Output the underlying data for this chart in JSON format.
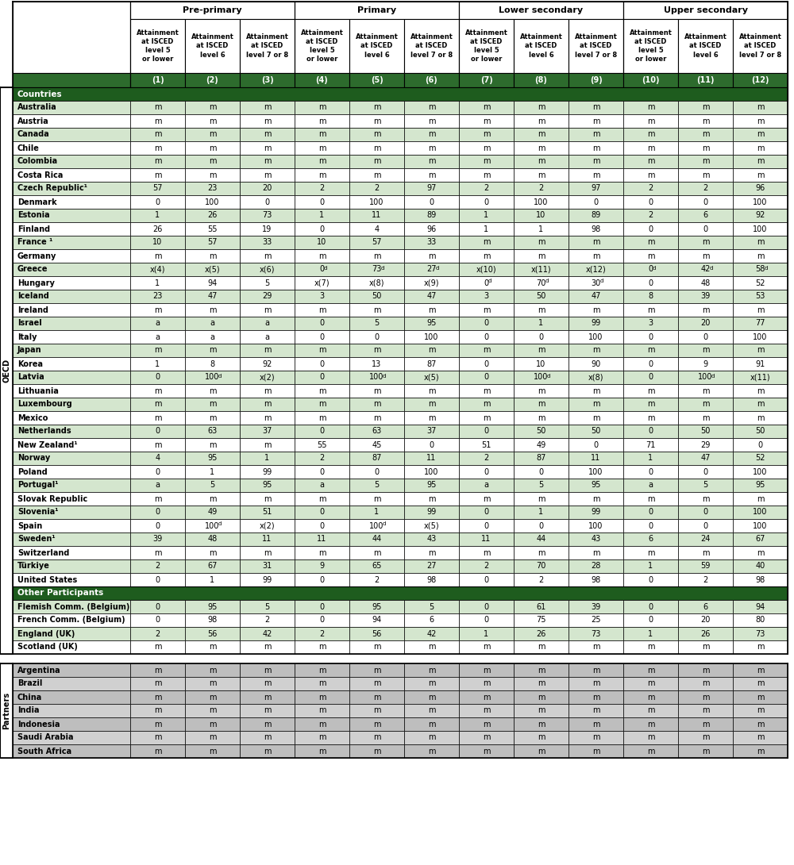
{
  "col_groups": [
    "Pre-primary",
    "Primary",
    "Lower secondary",
    "Upper secondary"
  ],
  "col_subheaders": [
    "Attainment\nat ISCED\nlevel 5\nor lower",
    "Attainment\nat ISCED\nlevel 6",
    "Attainment\nat ISCED\nlevel 7 or 8",
    "Attainment\nat ISCED\nlevel 5\nor lower",
    "Attainment\nat ISCED\nlevel 6",
    "Attainment\nat ISCED\nlevel 7 or 8",
    "Attainment\nat ISCED\nlevel 5\nor lower",
    "Attainment\nat ISCED\nlevel 6",
    "Attainment\nat ISCED\nlevel 7 or 8",
    "Attainment\nat ISCED\nlevel 5\nor lower",
    "Attainment\nat ISCED\nlevel 6",
    "Attainment\nat ISCED\nlevel 7 or 8"
  ],
  "col_numbers": [
    "(1)",
    "(2)",
    "(3)",
    "(4)",
    "(5)",
    "(6)",
    "(7)",
    "(8)",
    "(9)",
    "(10)",
    "(11)",
    "(12)"
  ],
  "oecd_label": "OECD",
  "partners_label": "Partners",
  "countries_header": "Countries",
  "other_participants_header": "Other Participants",
  "oecd_countries": [
    "Australia",
    "Austria",
    "Canada",
    "Chile",
    "Colombia",
    "Costa Rica",
    "Czech Republic¹",
    "Denmark",
    "Estonia",
    "Finland",
    "France ¹",
    "Germany",
    "Greece",
    "Hungary",
    "Iceland",
    "Ireland",
    "Israel",
    "Italy",
    "Japan",
    "Korea",
    "Latvia",
    "Lithuania",
    "Luxembourg",
    "Mexico",
    "Netherlands",
    "New Zealand¹",
    "Norway",
    "Poland",
    "Portugal¹",
    "Slovak Republic",
    "Slovenia¹",
    "Spain",
    "Sweden¹",
    "Switzerland",
    "Türkiye",
    "United States"
  ],
  "other_participants": [
    "Flemish Comm. (Belgium)",
    "French Comm. (Belgium)",
    "England (UK)",
    "Scotland (UK)"
  ],
  "partners": [
    "Argentina",
    "Brazil",
    "China",
    "India",
    "Indonesia",
    "Saudi Arabia",
    "South Africa"
  ],
  "oecd_data": [
    [
      "m",
      "m",
      "m",
      "m",
      "m",
      "m",
      "m",
      "m",
      "m",
      "m",
      "m",
      "m"
    ],
    [
      "m",
      "m",
      "m",
      "m",
      "m",
      "m",
      "m",
      "m",
      "m",
      "m",
      "m",
      "m"
    ],
    [
      "m",
      "m",
      "m",
      "m",
      "m",
      "m",
      "m",
      "m",
      "m",
      "m",
      "m",
      "m"
    ],
    [
      "m",
      "m",
      "m",
      "m",
      "m",
      "m",
      "m",
      "m",
      "m",
      "m",
      "m",
      "m"
    ],
    [
      "m",
      "m",
      "m",
      "m",
      "m",
      "m",
      "m",
      "m",
      "m",
      "m",
      "m",
      "m"
    ],
    [
      "m",
      "m",
      "m",
      "m",
      "m",
      "m",
      "m",
      "m",
      "m",
      "m",
      "m",
      "m"
    ],
    [
      "57",
      "23",
      "20",
      "2",
      "2",
      "97",
      "2",
      "2",
      "97",
      "2",
      "2",
      "96"
    ],
    [
      "0",
      "100",
      "0",
      "0",
      "100",
      "0",
      "0",
      "100",
      "0",
      "0",
      "0",
      "100"
    ],
    [
      "1",
      "26",
      "73",
      "1",
      "11",
      "89",
      "1",
      "10",
      "89",
      "2",
      "6",
      "92"
    ],
    [
      "26",
      "55",
      "19",
      "0",
      "4",
      "96",
      "1",
      "1",
      "98",
      "0",
      "0",
      "100"
    ],
    [
      "10",
      "57",
      "33",
      "10",
      "57",
      "33",
      "m",
      "m",
      "m",
      "m",
      "m",
      "m"
    ],
    [
      "m",
      "m",
      "m",
      "m",
      "m",
      "m",
      "m",
      "m",
      "m",
      "m",
      "m",
      "m"
    ],
    [
      "x(4)",
      "x(5)",
      "x(6)",
      "0d",
      "73d",
      "27d",
      "x(10)",
      "x(11)",
      "x(12)",
      "0d",
      "42d",
      "58d"
    ],
    [
      "1",
      "94",
      "5",
      "x(7)",
      "x(8)",
      "x(9)",
      "0d",
      "70d",
      "30d",
      "0",
      "48",
      "52"
    ],
    [
      "23",
      "47",
      "29",
      "3",
      "50",
      "47",
      "3",
      "50",
      "47",
      "8",
      "39",
      "53"
    ],
    [
      "m",
      "m",
      "m",
      "m",
      "m",
      "m",
      "m",
      "m",
      "m",
      "m",
      "m",
      "m"
    ],
    [
      "a",
      "a",
      "a",
      "0",
      "5",
      "95",
      "0",
      "1",
      "99",
      "3",
      "20",
      "77"
    ],
    [
      "a",
      "a",
      "a",
      "0",
      "0",
      "100",
      "0",
      "0",
      "100",
      "0",
      "0",
      "100"
    ],
    [
      "m",
      "m",
      "m",
      "m",
      "m",
      "m",
      "m",
      "m",
      "m",
      "m",
      "m",
      "m"
    ],
    [
      "1",
      "8",
      "92",
      "0",
      "13",
      "87",
      "0",
      "10",
      "90",
      "0",
      "9",
      "91"
    ],
    [
      "0",
      "100d",
      "x(2)",
      "0",
      "100d",
      "x(5)",
      "0",
      "100d",
      "x(8)",
      "0",
      "100d",
      "x(11)"
    ],
    [
      "m",
      "m",
      "m",
      "m",
      "m",
      "m",
      "m",
      "m",
      "m",
      "m",
      "m",
      "m"
    ],
    [
      "m",
      "m",
      "m",
      "m",
      "m",
      "m",
      "m",
      "m",
      "m",
      "m",
      "m",
      "m"
    ],
    [
      "m",
      "m",
      "m",
      "m",
      "m",
      "m",
      "m",
      "m",
      "m",
      "m",
      "m",
      "m"
    ],
    [
      "0",
      "63",
      "37",
      "0",
      "63",
      "37",
      "0",
      "50",
      "50",
      "0",
      "50",
      "50"
    ],
    [
      "m",
      "m",
      "m",
      "55",
      "45",
      "0",
      "51",
      "49",
      "0",
      "71",
      "29",
      "0"
    ],
    [
      "4",
      "95",
      "1",
      "2",
      "87",
      "11",
      "2",
      "87",
      "11",
      "1",
      "47",
      "52"
    ],
    [
      "0",
      "1",
      "99",
      "0",
      "0",
      "100",
      "0",
      "0",
      "100",
      "0",
      "0",
      "100"
    ],
    [
      "a",
      "5",
      "95",
      "a",
      "5",
      "95",
      "a",
      "5",
      "95",
      "a",
      "5",
      "95"
    ],
    [
      "m",
      "m",
      "m",
      "m",
      "m",
      "m",
      "m",
      "m",
      "m",
      "m",
      "m",
      "m"
    ],
    [
      "0",
      "49",
      "51",
      "0",
      "1",
      "99",
      "0",
      "1",
      "99",
      "0",
      "0",
      "100"
    ],
    [
      "0",
      "100d",
      "x(2)",
      "0",
      "100d",
      "x(5)",
      "0",
      "0",
      "100",
      "0",
      "0",
      "100"
    ],
    [
      "39",
      "48",
      "11",
      "11",
      "44",
      "43",
      "11",
      "44",
      "43",
      "6",
      "24",
      "67"
    ],
    [
      "m",
      "m",
      "m",
      "m",
      "m",
      "m",
      "m",
      "m",
      "m",
      "m",
      "m",
      "m"
    ],
    [
      "2",
      "67",
      "31",
      "9",
      "65",
      "27",
      "2",
      "70",
      "28",
      "1",
      "59",
      "40"
    ],
    [
      "0",
      "1",
      "99",
      "0",
      "2",
      "98",
      "0",
      "2",
      "98",
      "0",
      "2",
      "98"
    ]
  ],
  "other_data": [
    [
      "0",
      "95",
      "5",
      "0",
      "95",
      "5",
      "0",
      "61",
      "39",
      "0",
      "6",
      "94"
    ],
    [
      "0",
      "98",
      "2",
      "0",
      "94",
      "6",
      "0",
      "75",
      "25",
      "0",
      "20",
      "80"
    ],
    [
      "2",
      "56",
      "42",
      "2",
      "56",
      "42",
      "1",
      "26",
      "73",
      "1",
      "26",
      "73"
    ],
    [
      "m",
      "m",
      "m",
      "m",
      "m",
      "m",
      "m",
      "m",
      "m",
      "m",
      "m",
      "m"
    ]
  ],
  "partners_data": [
    [
      "m",
      "m",
      "m",
      "m",
      "m",
      "m",
      "m",
      "m",
      "m",
      "m",
      "m",
      "m"
    ],
    [
      "m",
      "m",
      "m",
      "m",
      "m",
      "m",
      "m",
      "m",
      "m",
      "m",
      "m",
      "m"
    ],
    [
      "m",
      "m",
      "m",
      "m",
      "m",
      "m",
      "m",
      "m",
      "m",
      "m",
      "m",
      "m"
    ],
    [
      "m",
      "m",
      "m",
      "m",
      "m",
      "m",
      "m",
      "m",
      "m",
      "m",
      "m",
      "m"
    ],
    [
      "m",
      "m",
      "m",
      "m",
      "m",
      "m",
      "m",
      "m",
      "m",
      "m",
      "m",
      "m"
    ],
    [
      "m",
      "m",
      "m",
      "m",
      "m",
      "m",
      "m",
      "m",
      "m",
      "m",
      "m",
      "m"
    ],
    [
      "m",
      "m",
      "m",
      "m",
      "m",
      "m",
      "m",
      "m",
      "m",
      "m",
      "m",
      "m"
    ]
  ],
  "color_header_dark": "#1e5c1e",
  "color_row_light": "#d4e6ce",
  "color_row_white": "#ffffff",
  "color_partners_bg": "#bebebe",
  "color_partners_alt": "#d0d0d0",
  "color_num_row_bg": "#2d6b2d",
  "sidebar_bg": "#e8e8e8"
}
